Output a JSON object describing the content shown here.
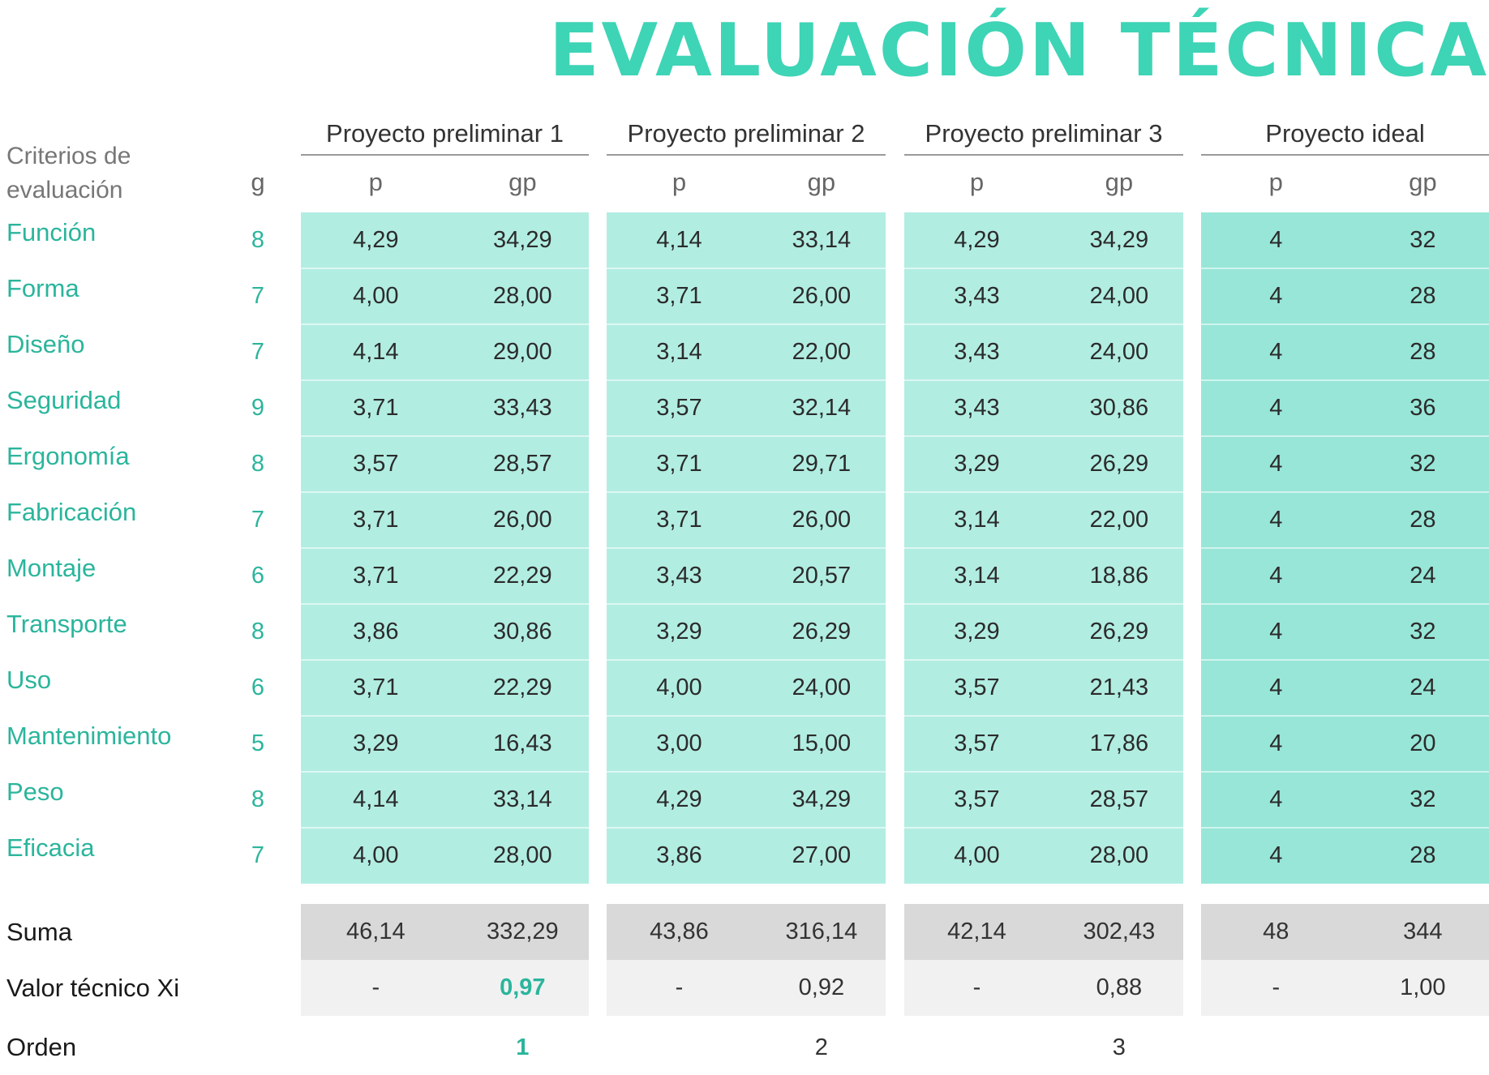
{
  "title": "EVALUACIÓN TÉCNICA",
  "criteria_header": "Criterios de evaluación",
  "g_header": "g",
  "p_header": "p",
  "gp_header": "gp",
  "projects": [
    "Proyecto preliminar 1",
    "Proyecto preliminar 2",
    "Proyecto preliminar 3",
    "Proyecto ideal"
  ],
  "criteria": [
    {
      "name": "Función",
      "g": "8",
      "values": [
        [
          "4,29",
          "34,29"
        ],
        [
          "4,14",
          "33,14"
        ],
        [
          "4,29",
          "34,29"
        ],
        [
          "4",
          "32"
        ]
      ]
    },
    {
      "name": "Forma",
      "g": "7",
      "values": [
        [
          "4,00",
          "28,00"
        ],
        [
          "3,71",
          "26,00"
        ],
        [
          "3,43",
          "24,00"
        ],
        [
          "4",
          "28"
        ]
      ]
    },
    {
      "name": "Diseño",
      "g": "7",
      "values": [
        [
          "4,14",
          "29,00"
        ],
        [
          "3,14",
          "22,00"
        ],
        [
          "3,43",
          "24,00"
        ],
        [
          "4",
          "28"
        ]
      ]
    },
    {
      "name": "Seguridad",
      "g": "9",
      "values": [
        [
          "3,71",
          "33,43"
        ],
        [
          "3,57",
          "32,14"
        ],
        [
          "3,43",
          "30,86"
        ],
        [
          "4",
          "36"
        ]
      ]
    },
    {
      "name": "Ergonomía",
      "g": "8",
      "values": [
        [
          "3,57",
          "28,57"
        ],
        [
          "3,71",
          "29,71"
        ],
        [
          "3,29",
          "26,29"
        ],
        [
          "4",
          "32"
        ]
      ]
    },
    {
      "name": "Fabricación",
      "g": "7",
      "values": [
        [
          "3,71",
          "26,00"
        ],
        [
          "3,71",
          "26,00"
        ],
        [
          "3,14",
          "22,00"
        ],
        [
          "4",
          "28"
        ]
      ]
    },
    {
      "name": "Montaje",
      "g": "6",
      "values": [
        [
          "3,71",
          "22,29"
        ],
        [
          "3,43",
          "20,57"
        ],
        [
          "3,14",
          "18,86"
        ],
        [
          "4",
          "24"
        ]
      ]
    },
    {
      "name": "Transporte",
      "g": "8",
      "values": [
        [
          "3,86",
          "30,86"
        ],
        [
          "3,29",
          "26,29"
        ],
        [
          "3,29",
          "26,29"
        ],
        [
          "4",
          "32"
        ]
      ]
    },
    {
      "name": "Uso",
      "g": "6",
      "values": [
        [
          "3,71",
          "22,29"
        ],
        [
          "4,00",
          "24,00"
        ],
        [
          "3,57",
          "21,43"
        ],
        [
          "4",
          "24"
        ]
      ]
    },
    {
      "name": "Mantenimiento",
      "g": "5",
      "values": [
        [
          "3,29",
          "16,43"
        ],
        [
          "3,00",
          "15,00"
        ],
        [
          "3,57",
          "17,86"
        ],
        [
          "4",
          "20"
        ]
      ]
    },
    {
      "name": "Peso",
      "g": "8",
      "values": [
        [
          "4,14",
          "33,14"
        ],
        [
          "4,29",
          "34,29"
        ],
        [
          "3,57",
          "28,57"
        ],
        [
          "4",
          "32"
        ]
      ]
    },
    {
      "name": "Eficacia",
      "g": "7",
      "values": [
        [
          "4,00",
          "28,00"
        ],
        [
          "3,86",
          "27,00"
        ],
        [
          "4,00",
          "28,00"
        ],
        [
          "4",
          "28"
        ]
      ]
    }
  ],
  "sum": {
    "label": "Suma",
    "values": [
      [
        "46,14",
        "332,29"
      ],
      [
        "43,86",
        "316,14"
      ],
      [
        "42,14",
        "302,43"
      ],
      [
        "48",
        "344"
      ]
    ]
  },
  "technical_value": {
    "label": "Valor técnico Xi",
    "values": [
      [
        "-",
        "0,97"
      ],
      [
        "-",
        "0,92"
      ],
      [
        "-",
        "0,88"
      ],
      [
        "-",
        "1,00"
      ]
    ]
  },
  "order": {
    "label": "Orden",
    "values": [
      "1",
      "2",
      "3"
    ]
  },
  "colors": {
    "accent": "#3ed4b6",
    "text_accent": "#2bb59c",
    "cell_light": "#b2ede2",
    "cell_ideal": "#98e6d8",
    "sum_bg": "#d9d9d9",
    "value_bg": "#f1f1f1"
  }
}
